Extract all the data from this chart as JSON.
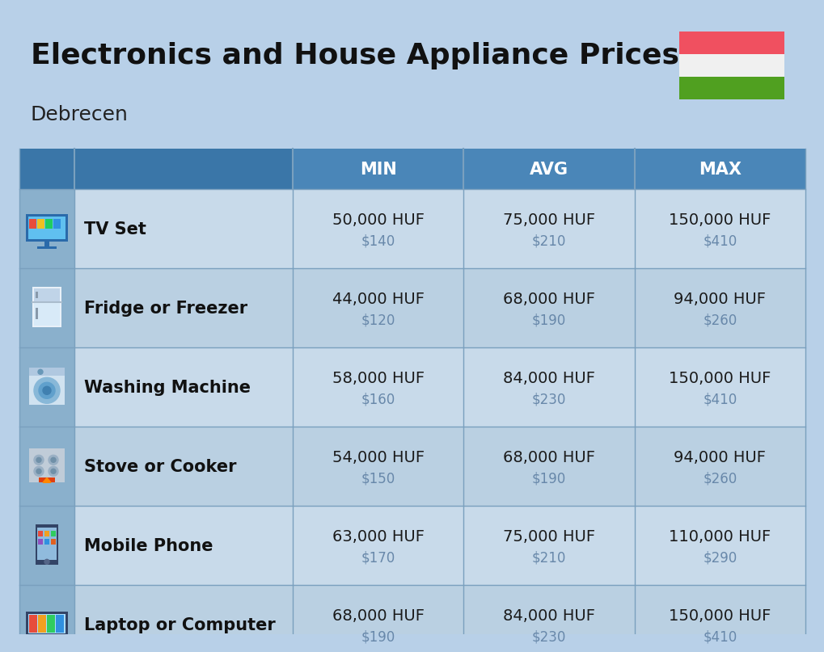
{
  "title": "Electronics and House Appliance Prices",
  "subtitle": "Debrecen",
  "bg_color": "#b8d0e8",
  "header_bg_color": "#4a86b8",
  "header_text_color": "#ffffff",
  "row_bg_even": "#c8daea",
  "row_bg_odd": "#bad0e2",
  "icon_bg": "#8ab0cc",
  "header_darker": "#3a76a8",
  "divider_color": "#7aa0be",
  "columns": [
    "MIN",
    "AVG",
    "MAX"
  ],
  "rows": [
    {
      "name": "TV Set",
      "min_huf": "50,000 HUF",
      "min_usd": "$140",
      "avg_huf": "75,000 HUF",
      "avg_usd": "$210",
      "max_huf": "150,000 HUF",
      "max_usd": "$410",
      "icon": "tv"
    },
    {
      "name": "Fridge or Freezer",
      "min_huf": "44,000 HUF",
      "min_usd": "$120",
      "avg_huf": "68,000 HUF",
      "avg_usd": "$190",
      "max_huf": "94,000 HUF",
      "max_usd": "$260",
      "icon": "fridge"
    },
    {
      "name": "Washing Machine",
      "min_huf": "58,000 HUF",
      "min_usd": "$160",
      "avg_huf": "84,000 HUF",
      "avg_usd": "$230",
      "max_huf": "150,000 HUF",
      "max_usd": "$410",
      "icon": "washing"
    },
    {
      "name": "Stove or Cooker",
      "min_huf": "54,000 HUF",
      "min_usd": "$150",
      "avg_huf": "68,000 HUF",
      "avg_usd": "$190",
      "max_huf": "94,000 HUF",
      "max_usd": "$260",
      "icon": "stove"
    },
    {
      "name": "Mobile Phone",
      "min_huf": "63,000 HUF",
      "min_usd": "$170",
      "avg_huf": "75,000 HUF",
      "avg_usd": "$210",
      "max_huf": "110,000 HUF",
      "max_usd": "$290",
      "icon": "phone"
    },
    {
      "name": "Laptop or Computer",
      "min_huf": "68,000 HUF",
      "min_usd": "$190",
      "avg_huf": "84,000 HUF",
      "avg_usd": "$230",
      "max_huf": "150,000 HUF",
      "max_usd": "$410",
      "icon": "laptop"
    }
  ],
  "flag_red": "#f05060",
  "flag_white": "#f0f0f0",
  "flag_green": "#50a020",
  "usd_color": "#6888aa",
  "huf_color": "#1a1a1a",
  "name_color": "#111111",
  "title_color": "#111111",
  "subtitle_color": "#222222"
}
